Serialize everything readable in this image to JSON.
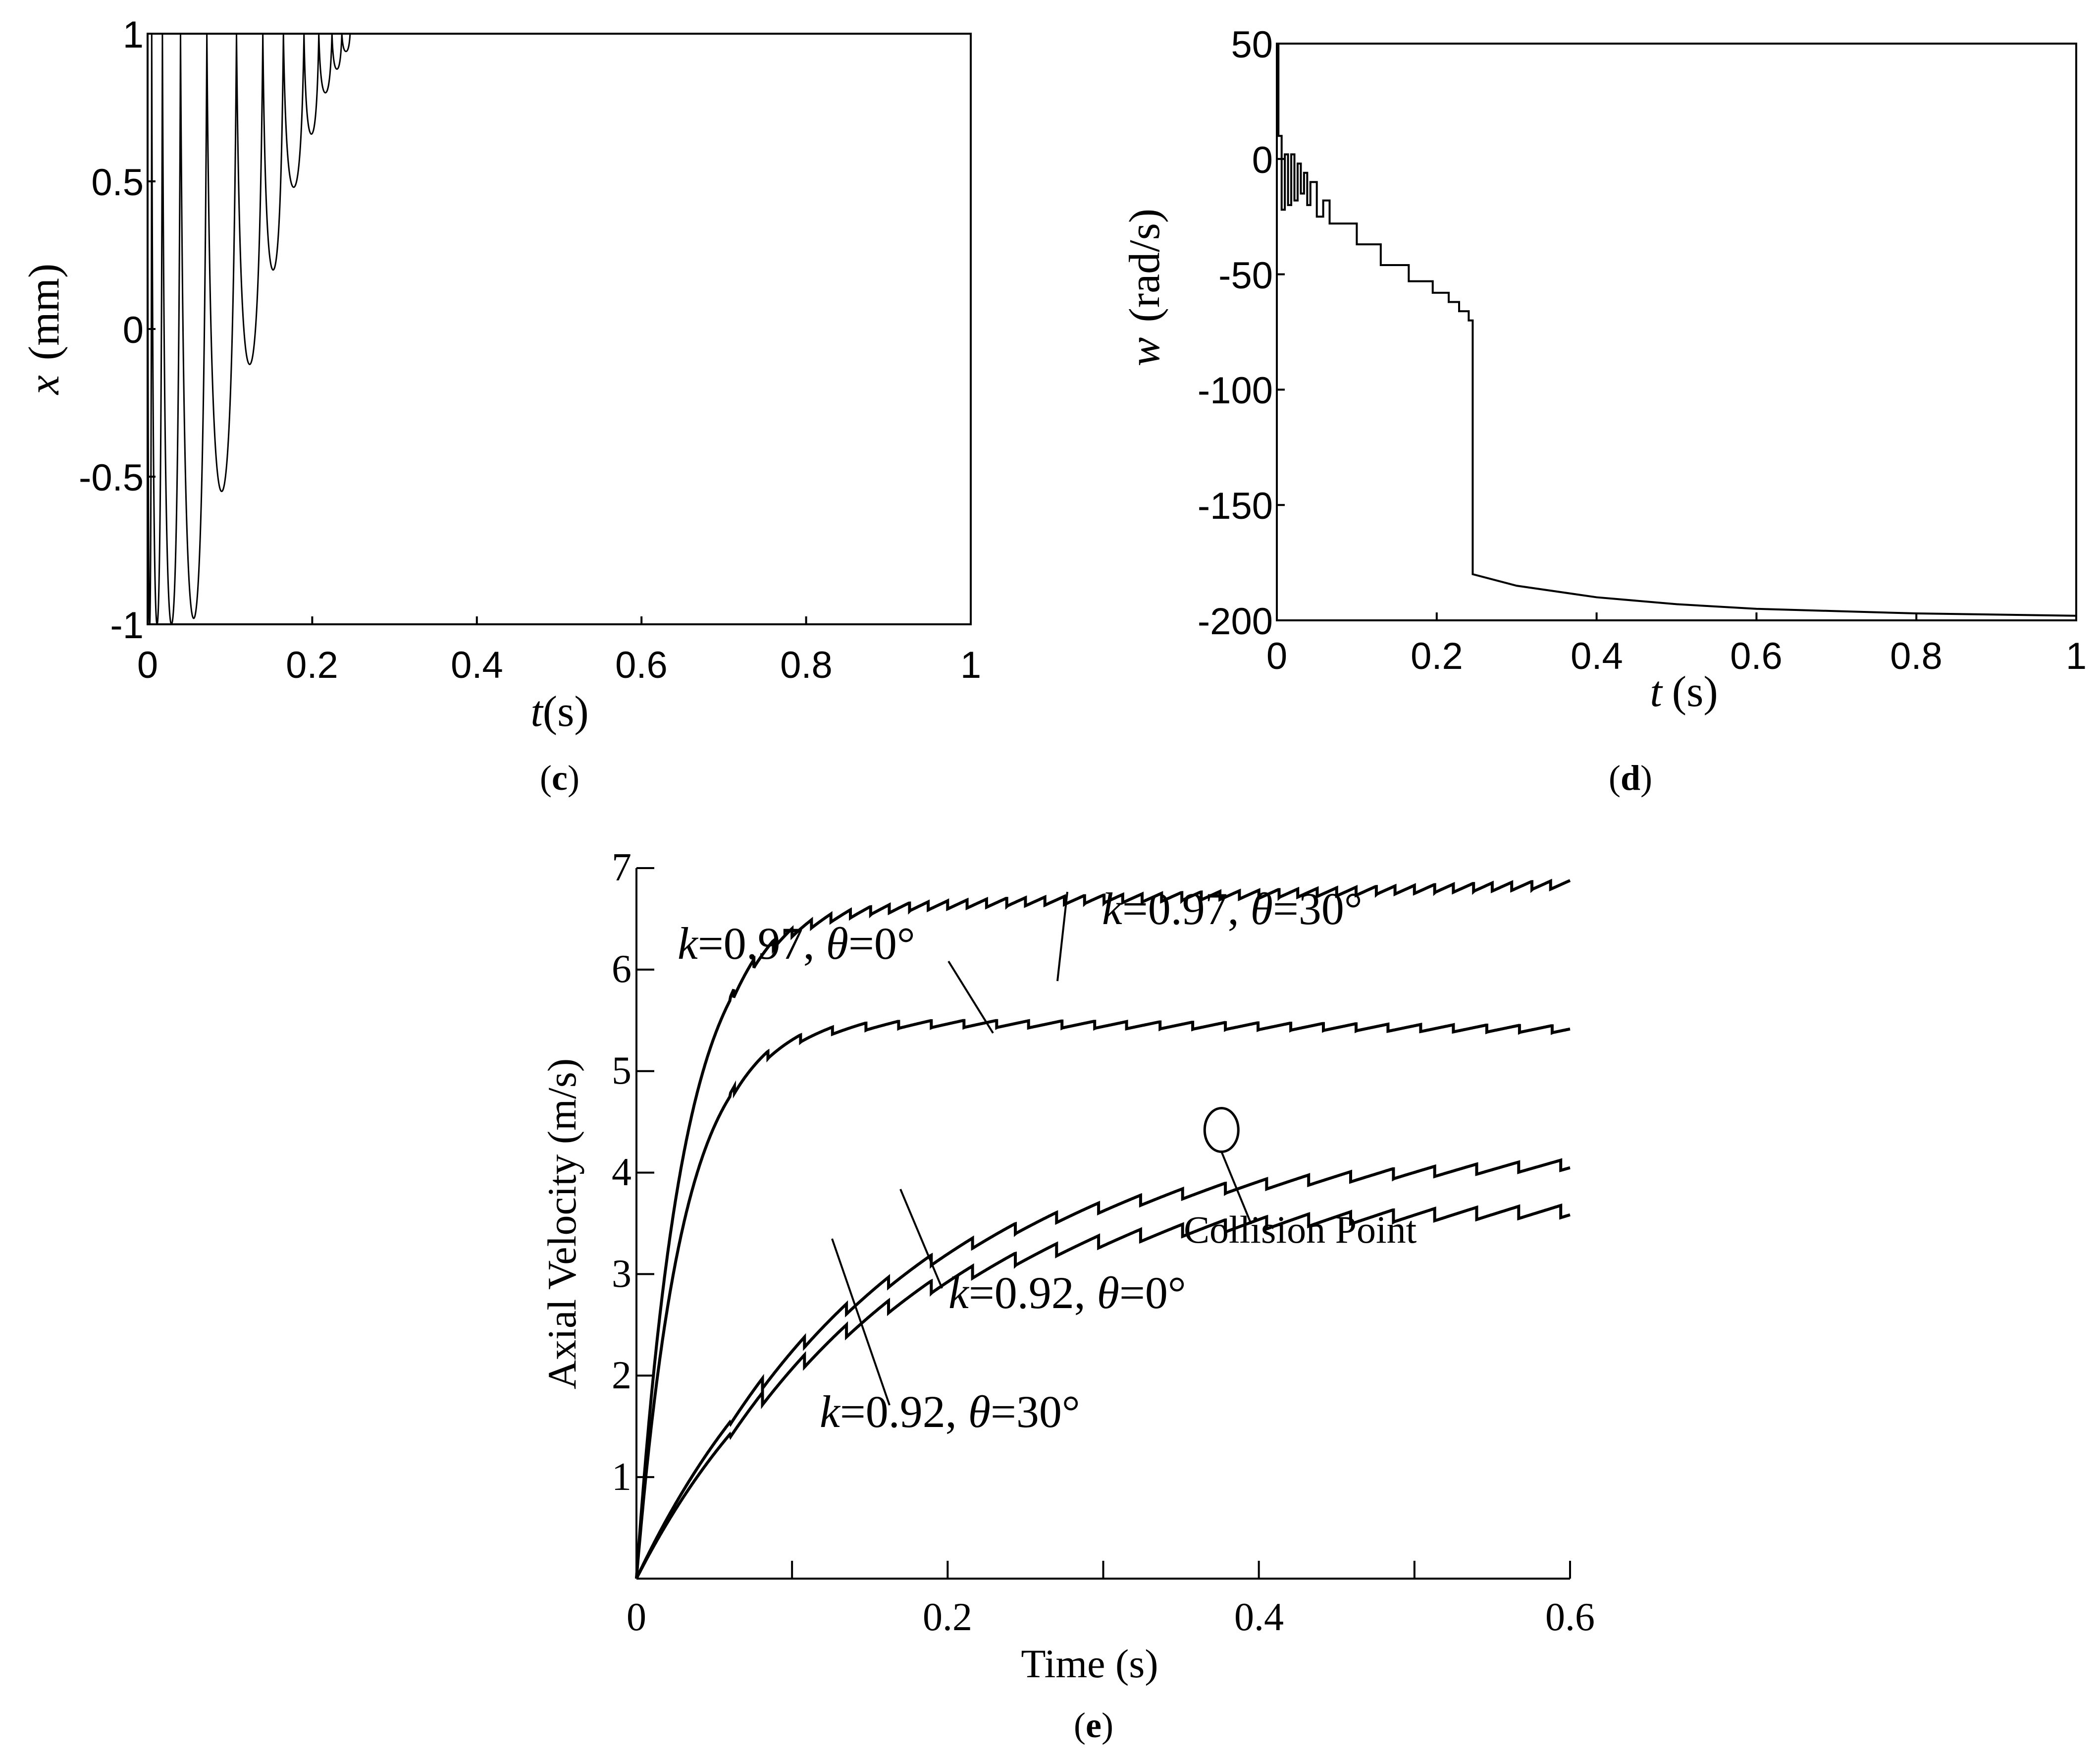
{
  "chart_data": [
    {
      "id": "c",
      "type": "line",
      "panel_label": "c",
      "title": "",
      "xlabel": {
        "var": "t",
        "unit": "(s)"
      },
      "ylabel": {
        "var": "x",
        "unit": "(mm)"
      },
      "xlim": [
        0,
        1
      ],
      "ylim": [
        -1,
        1
      ],
      "xticks": [
        "0",
        "0.2",
        "0.4",
        "0.6",
        "0.8",
        "1"
      ],
      "yticks": [
        "-1",
        "-0.5",
        "0",
        "0.5",
        "1"
      ],
      "series": [
        {
          "name": "x",
          "bounces": [
            {
              "t": 0.005,
              "min": -1.0
            },
            {
              "t": 0.018,
              "min": -1.0
            },
            {
              "t": 0.04,
              "min": -1.0
            },
            {
              "t": 0.072,
              "min": -0.98
            },
            {
              "t": 0.108,
              "min": -0.55
            },
            {
              "t": 0.14,
              "min": -0.12
            },
            {
              "t": 0.165,
              "min": 0.2
            },
            {
              "t": 0.19,
              "min": 0.48
            },
            {
              "t": 0.208,
              "min": 0.66
            },
            {
              "t": 0.224,
              "min": 0.8
            },
            {
              "t": 0.236,
              "min": 0.88
            },
            {
              "t": 0.246,
              "min": 0.94
            }
          ],
          "settle_value": 1.0,
          "settle_time": 0.25
        }
      ]
    },
    {
      "id": "d",
      "type": "line",
      "panel_label": "d",
      "title": "",
      "xlabel": {
        "var": "t",
        "unit": "(s)"
      },
      "ylabel": {
        "var": "w",
        "unit": "(rad/s)"
      },
      "xlim": [
        0,
        1
      ],
      "ylim": [
        -200,
        50
      ],
      "xticks": [
        "0",
        "0.2",
        "0.4",
        "0.6",
        "0.8",
        "1"
      ],
      "yticks": [
        "-200",
        "-150",
        "-100",
        "-50",
        "0",
        "50"
      ],
      "series": [
        {
          "name": "w",
          "steps": [
            [
              0.0,
              50
            ],
            [
              0.002,
              10
            ],
            [
              0.006,
              -22
            ],
            [
              0.01,
              2
            ],
            [
              0.014,
              -20
            ],
            [
              0.018,
              2
            ],
            [
              0.022,
              -18
            ],
            [
              0.026,
              -2
            ],
            [
              0.03,
              -15
            ],
            [
              0.034,
              -6
            ],
            [
              0.038,
              -20
            ],
            [
              0.042,
              -10
            ],
            [
              0.05,
              -25
            ],
            [
              0.058,
              -18
            ],
            [
              0.066,
              -28
            ],
            [
              0.085,
              -28
            ],
            [
              0.1,
              -37
            ],
            [
              0.125,
              -37
            ],
            [
              0.13,
              -46
            ],
            [
              0.16,
              -46
            ],
            [
              0.165,
              -53
            ],
            [
              0.19,
              -53
            ],
            [
              0.195,
              -58
            ],
            [
              0.21,
              -58
            ],
            [
              0.215,
              -62
            ],
            [
              0.225,
              -62
            ],
            [
              0.228,
              -66
            ],
            [
              0.238,
              -66
            ],
            [
              0.24,
              -70
            ],
            [
              0.245,
              -70
            ]
          ],
          "decay": [
            [
              0.245,
              -180
            ],
            [
              0.3,
              -185
            ],
            [
              0.4,
              -190
            ],
            [
              0.5,
              -193
            ],
            [
              0.6,
              -195
            ],
            [
              0.7,
              -196
            ],
            [
              0.8,
              -197
            ],
            [
              0.9,
              -197.5
            ],
            [
              1.0,
              -198
            ]
          ]
        }
      ]
    },
    {
      "id": "e",
      "type": "line",
      "panel_label": "e",
      "title": "",
      "xlabel": "Time (s)",
      "ylabel": "Axial Velocity (m/s)",
      "xlim": [
        0,
        0.6
      ],
      "ylim": [
        0,
        7
      ],
      "xticks": [
        "0",
        "0.2",
        "0.4",
        "0.6"
      ],
      "yticks": [
        "1",
        "2",
        "3",
        "4",
        "5",
        "6",
        "7"
      ],
      "series": [
        {
          "name": "k=0.97, θ=30°",
          "k": "0.97",
          "theta": "30°",
          "vmax": 6.55,
          "tau": 0.03,
          "period": 0.0125,
          "drop": 0.08,
          "rise": 0.0048,
          "mode": "approach"
        },
        {
          "name": "k=0.97, θ=0°",
          "k": "0.97",
          "theta": "0°",
          "vmax": 5.5,
          "tau": 0.03,
          "period": 0.021,
          "drop": 0.07,
          "rise": -0.0015,
          "mode": "approach"
        },
        {
          "name": "k=0.92, θ=30°",
          "k": "0.92",
          "theta": "30°",
          "vmax": 3.85,
          "tau": 0.12,
          "period": 0.027,
          "drop": 0.1,
          "rise": 0.0042,
          "mode": "rise"
        },
        {
          "name": "k=0.92, θ=0°",
          "k": "0.92",
          "theta": "0°",
          "vmax": 3.6,
          "tau": 0.12,
          "period": 0.027,
          "drop": 0.12,
          "rise": 0.0007,
          "mode": "rise"
        }
      ],
      "labels": [
        {
          "series": "k=0.97, θ=30°",
          "k_text": "k",
          "eq_text": "=0.97, ",
          "theta_text": "θ",
          "deg_text": "=30°"
        },
        {
          "series": "k=0.97, θ=0°",
          "k_text": "k",
          "eq_text": "=0.97, ",
          "theta_text": "θ",
          "deg_text": "=0°"
        },
        {
          "series": "k=0.92, θ=0°",
          "k_text": "k",
          "eq_text": "=0.92, ",
          "theta_text": "θ",
          "deg_text": "=0°"
        },
        {
          "series": "k=0.92, θ=30°",
          "k_text": "k",
          "eq_text": "=0.92, ",
          "theta_text": "θ",
          "deg_text": "=30°"
        }
      ],
      "annotation": {
        "text": "Collision Point",
        "t": 0.376,
        "v": 4.42
      }
    }
  ]
}
